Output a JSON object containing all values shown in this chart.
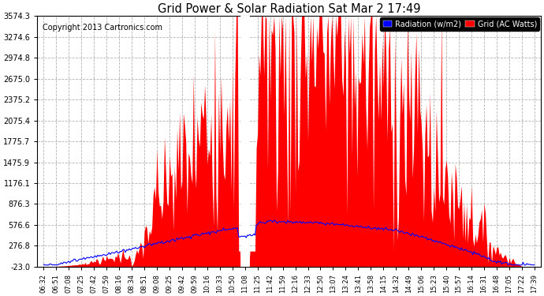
{
  "title": "Grid Power & Solar Radiation Sat Mar 2 17:49",
  "copyright": "Copyright 2013 Cartronics.com",
  "bg_color": "#ffffff",
  "plot_bg_color": "#ffffff",
  "grid_color": "#aaaaaa",
  "ylim": [
    -23.0,
    3574.3
  ],
  "yticks": [
    -23.0,
    276.8,
    576.6,
    876.3,
    1176.1,
    1475.9,
    1775.7,
    2075.4,
    2375.2,
    2675.0,
    2974.8,
    3274.6,
    3574.3
  ],
  "legend_radiation_label": "Radiation (w/m2)",
  "legend_grid_label": "Grid (AC Watts)",
  "radiation_color": "#0000ff",
  "grid_fill_color": "#ff0000",
  "time_labels": [
    "06:32",
    "06:51",
    "07:08",
    "07:25",
    "07:42",
    "07:59",
    "08:16",
    "08:34",
    "08:51",
    "09:08",
    "09:25",
    "09:42",
    "09:59",
    "10:16",
    "10:33",
    "10:50",
    "11:08",
    "11:25",
    "11:42",
    "11:59",
    "12:16",
    "12:33",
    "12:50",
    "13:07",
    "13:24",
    "13:41",
    "13:58",
    "14:15",
    "14:32",
    "14:49",
    "15:06",
    "15:23",
    "15:40",
    "15:57",
    "16:14",
    "16:31",
    "16:48",
    "17:05",
    "17:22",
    "17:39"
  ]
}
